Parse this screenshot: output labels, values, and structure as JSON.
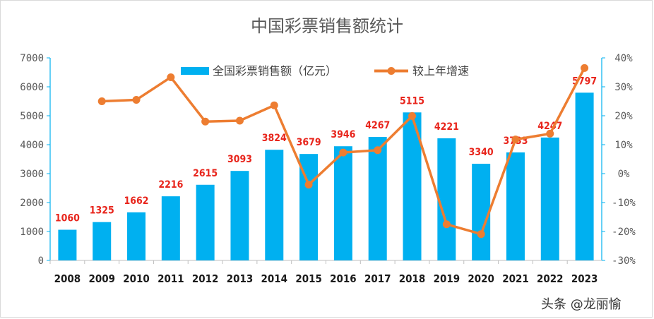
{
  "chart_data": {
    "type": "bar+line",
    "title": "中国彩票销售额统计",
    "categories": [
      "2008",
      "2009",
      "2010",
      "2011",
      "2012",
      "2013",
      "2014",
      "2015",
      "2016",
      "2017",
      "2018",
      "2019",
      "2020",
      "2021",
      "2022",
      "2023"
    ],
    "series": [
      {
        "name": "全国彩票销售额（亿元）",
        "type": "bar",
        "axis": "left",
        "color": "#00b0f0",
        "values": [
          1060,
          1325,
          1662,
          2216,
          2615,
          3093,
          3824,
          3679,
          3946,
          4267,
          5115,
          4221,
          3340,
          3733,
          4247,
          5797
        ],
        "labels": [
          "1060",
          "1325",
          "1662",
          "2216",
          "2615",
          "3093",
          "3824",
          "3679",
          "3946",
          "4267",
          "5115",
          "4221",
          "3340",
          "3733",
          "4247",
          "5797"
        ]
      },
      {
        "name": "较上年增速",
        "type": "line",
        "axis": "right",
        "color": "#ed7d31",
        "values": [
          null,
          25,
          25.5,
          33.3,
          18,
          18.3,
          23.6,
          -3.8,
          7.3,
          8.1,
          19.9,
          -17.5,
          -20.9,
          11.8,
          13.8,
          36.5
        ]
      }
    ],
    "y_left": {
      "min": 0,
      "max": 7000,
      "step": 1000,
      "ticks": [
        "0",
        "1000",
        "2000",
        "3000",
        "4000",
        "5000",
        "6000",
        "7000"
      ]
    },
    "y_right": {
      "min": -30,
      "max": 40,
      "step": 10,
      "ticks": [
        "-30%",
        "-20%",
        "-10%",
        "0%",
        "10%",
        "20%",
        "30%",
        "40%"
      ]
    },
    "legend_position": "top-center",
    "grid": false
  },
  "watermark": "头条 @龙丽愉"
}
